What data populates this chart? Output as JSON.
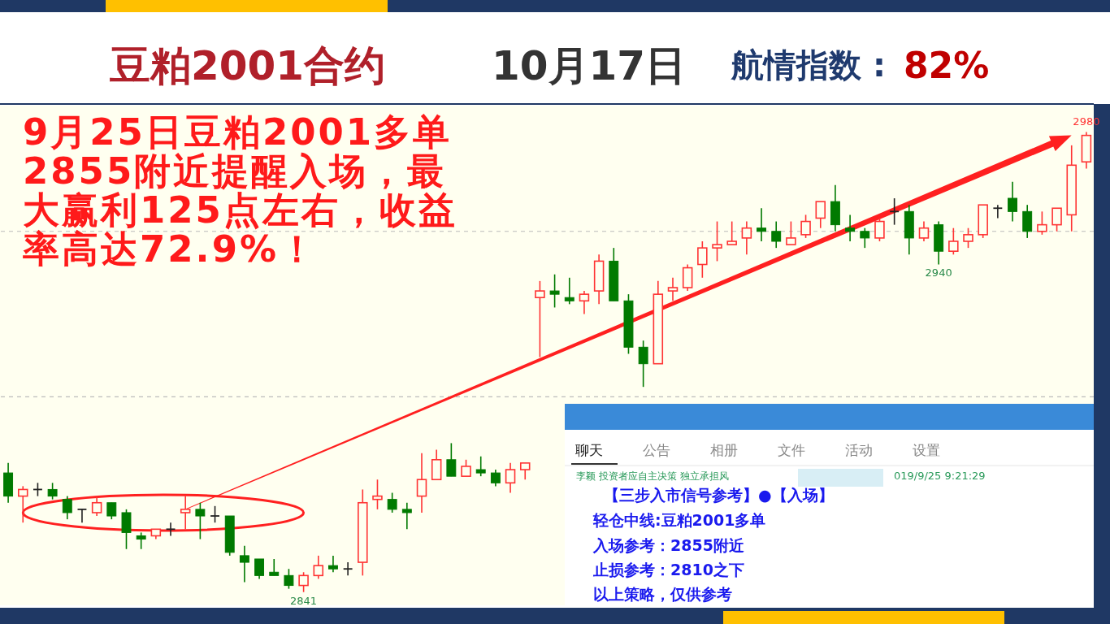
{
  "chart_data": {
    "type": "candlestick",
    "title": "豆粕2001合约",
    "subtitle": "10月17日",
    "categories": [
      null,
      null,
      null,
      null,
      null,
      null,
      null,
      null,
      null,
      null,
      null,
      null,
      null,
      null,
      null,
      null,
      null,
      null,
      null,
      null,
      null,
      null,
      null,
      null,
      null,
      null,
      null,
      null,
      null,
      null,
      null,
      null,
      null,
      null,
      null,
      null,
      null,
      null,
      null,
      null,
      null,
      null,
      null,
      null,
      null,
      null,
      null,
      null,
      null,
      null,
      null,
      null,
      null,
      null,
      null,
      null,
      null,
      null,
      null,
      null,
      null,
      null,
      null,
      null,
      null,
      null,
      null,
      null,
      null,
      null,
      null,
      null,
      null,
      null
    ],
    "ohlc": [
      [
        2877,
        2880,
        2868,
        2870
      ],
      [
        2870,
        2873,
        2862,
        2872
      ],
      [
        2872,
        2874,
        2870,
        2872
      ],
      [
        2872,
        2874,
        2869,
        2870
      ],
      [
        2869,
        2870,
        2863,
        2865
      ],
      [
        2866,
        2866,
        2862,
        2866
      ],
      [
        2865,
        2870,
        2864,
        2868
      ],
      [
        2868,
        2868,
        2863,
        2864
      ],
      [
        2865,
        2866,
        2854,
        2859
      ],
      [
        2858,
        2859,
        2854,
        2857
      ],
      [
        2858,
        2860,
        2857,
        2860
      ],
      [
        2860,
        2862,
        2858,
        2860
      ],
      [
        2865,
        2870,
        2860,
        2866
      ],
      [
        2866,
        2868,
        2857,
        2864
      ],
      [
        2864,
        2867,
        2862,
        2864
      ],
      [
        2864,
        2864,
        2852,
        2853
      ],
      [
        2852,
        2855,
        2844,
        2850
      ],
      [
        2851,
        2851,
        2845,
        2846
      ],
      [
        2847,
        2851,
        2846,
        2846
      ],
      [
        2846,
        2848,
        2842,
        2843
      ],
      [
        2843,
        2847,
        2841,
        2846
      ],
      [
        2846,
        2852,
        2845,
        2849
      ],
      [
        2849,
        2852,
        2847,
        2848
      ],
      [
        2848,
        2850,
        2846,
        2848
      ],
      [
        2850,
        2872,
        2846,
        2868
      ],
      [
        2869,
        2875,
        2866,
        2870
      ],
      [
        2869,
        2871,
        2865,
        2866
      ],
      [
        2866,
        2868,
        2860,
        2865
      ],
      [
        2870,
        2883,
        2865,
        2875
      ],
      [
        2875,
        2884,
        2875,
        2881
      ],
      [
        2881,
        2886,
        2876,
        2876
      ],
      [
        2876,
        2881,
        2876,
        2879
      ],
      [
        2878,
        2882,
        2876,
        2877
      ],
      [
        2877,
        2878,
        2873,
        2874
      ],
      [
        2874,
        2880,
        2871,
        2878
      ],
      [
        2878,
        2880,
        2875,
        2880
      ],
      [
        2930,
        2935,
        2912,
        2932
      ],
      [
        2932,
        2937,
        2927,
        2931
      ],
      [
        2930,
        2936,
        2928,
        2929
      ],
      [
        2929,
        2932,
        2925,
        2931
      ],
      [
        2932,
        2943,
        2928,
        2941
      ],
      [
        2941,
        2945,
        2929,
        2929
      ],
      [
        2929,
        2931,
        2913,
        2915
      ],
      [
        2915,
        2917,
        2903,
        2910
      ],
      [
        2910,
        2935,
        2910,
        2931
      ],
      [
        2932,
        2936,
        2929,
        2933
      ],
      [
        2933,
        2940,
        2932,
        2939
      ],
      [
        2940,
        2947,
        2936,
        2945
      ],
      [
        2945,
        2953,
        2941,
        2946
      ],
      [
        2946,
        2953,
        2946,
        2947
      ],
      [
        2948,
        2953,
        2943,
        2951
      ],
      [
        2951,
        2957,
        2947,
        2950
      ],
      [
        2950,
        2953,
        2945,
        2947
      ],
      [
        2946,
        2953,
        2946,
        2948
      ],
      [
        2949,
        2955,
        2948,
        2953
      ],
      [
        2954,
        2959,
        2951,
        2959
      ],
      [
        2959,
        2964,
        2950,
        2952
      ],
      [
        2951,
        2955,
        2947,
        2950
      ],
      [
        2950,
        2951,
        2945,
        2948
      ],
      [
        2948,
        2954,
        2947,
        2953
      ],
      [
        2956,
        2960,
        2952,
        2956
      ],
      [
        2956,
        2958,
        2943,
        2948
      ],
      [
        2948,
        2953,
        2947,
        2951
      ],
      [
        2952,
        2953,
        2940,
        2944
      ],
      [
        2944,
        2951,
        2943,
        2947
      ],
      [
        2947,
        2951,
        2945,
        2949
      ],
      [
        2949,
        2958,
        2948,
        2958
      ],
      [
        2957,
        2958,
        2954,
        2957
      ],
      [
        2960,
        2965,
        2953,
        2956
      ],
      [
        2956,
        2958,
        2948,
        2950
      ],
      [
        2950,
        2956,
        2949,
        2952
      ],
      [
        2952,
        2957,
        2950,
        2957
      ],
      [
        2955,
        2976,
        2950,
        2970
      ],
      [
        2971,
        2980,
        2969,
        2979
      ]
    ],
    "colors": [
      "#007a00",
      "#ff3333",
      "#222222",
      "#007a00",
      "#007a00",
      "#222222",
      "#ff3333",
      "#007a00",
      "#007a00",
      "#007a00",
      "#ff3333",
      "#222222",
      "#ff3333",
      "#007a00",
      "#222222",
      "#007a00",
      "#007a00",
      "#007a00",
      "#007a00",
      "#007a00",
      "#ff3333",
      "#ff3333",
      "#007a00",
      "#222222",
      "#ff3333",
      "#ff3333",
      "#007a00",
      "#007a00",
      "#ff3333",
      "#ff3333",
      "#007a00",
      "#ff3333",
      "#007a00",
      "#007a00",
      "#ff3333",
      "#ff3333",
      "#ff3333",
      "#007a00",
      "#007a00",
      "#ff3333",
      "#ff3333",
      "#007a00",
      "#007a00",
      "#007a00",
      "#ff3333",
      "#ff3333",
      "#ff3333",
      "#ff3333",
      "#ff3333",
      "#ff3333",
      "#ff3333",
      "#007a00",
      "#007a00",
      "#ff3333",
      "#ff3333",
      "#ff3333",
      "#007a00",
      "#007a00",
      "#007a00",
      "#ff3333",
      "#222222",
      "#007a00",
      "#ff3333",
      "#007a00",
      "#ff3333",
      "#ff3333",
      "#ff3333",
      "#222222",
      "#007a00",
      "#007a00",
      "#ff3333",
      "#ff3333",
      "#ff3333",
      "#ff3333"
    ],
    "ylim": [
      2837,
      2988
    ],
    "yticks": [
      {
        "value": 2900,
        "label": null
      },
      {
        "value": 2950,
        "label": null
      }
    ],
    "grid": "y",
    "annotations": [
      "航情指数 :",
      "82%",
      "9月25日豆粕2001多单2855附近提醒入场，最大赢利125点左右，收益率高达72.9%！",
      "聊天",
      "公告",
      "相册",
      "文件",
      "活动",
      "设置",
      "李颖 投资者应自主决策 独立承担风",
      "019/9/25 9:21:29",
      "【三步入市信号参考】●【入场】",
      "轻仓中线:豆粕2001多单",
      "入场参考：2855附近",
      "止损参考：2810之下",
      "以上策略，仅供参考",
      {
        "text": "2980",
        "y": 2980
      },
      {
        "text": "2940",
        "y": 2940
      },
      {
        "text": "2841",
        "y": 2841
      }
    ]
  }
}
